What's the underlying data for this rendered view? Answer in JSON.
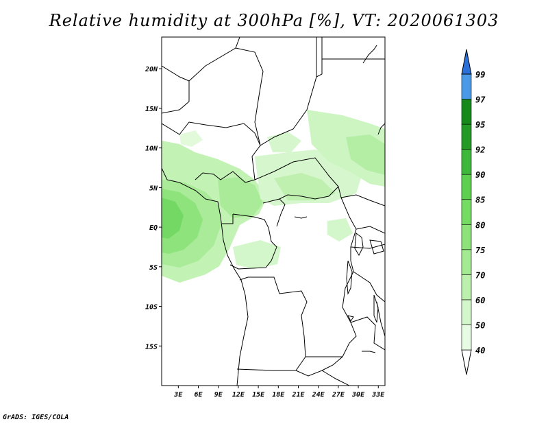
{
  "title": "Relative humidity at 300hPa [%], VT: 2020061303",
  "credit": "GrADS: IGES/COLA",
  "map": {
    "lat_range": [
      -20,
      24
    ],
    "lon_range": [
      0.5,
      34
    ],
    "lat_ticks": [
      {
        "value": 20,
        "label": "20N"
      },
      {
        "value": 15,
        "label": "15N"
      },
      {
        "value": 10,
        "label": "10N"
      },
      {
        "value": 5,
        "label": "5N"
      },
      {
        "value": 0,
        "label": "EQ"
      },
      {
        "value": -5,
        "label": "5S"
      },
      {
        "value": -10,
        "label": "10S"
      },
      {
        "value": -15,
        "label": "15S"
      }
    ],
    "lon_ticks": [
      {
        "value": 3,
        "label": "3E"
      },
      {
        "value": 6,
        "label": "6E"
      },
      {
        "value": 9,
        "label": "9E"
      },
      {
        "value": 12,
        "label": "12E"
      },
      {
        "value": 15,
        "label": "15E"
      },
      {
        "value": 18,
        "label": "18E"
      },
      {
        "value": 21,
        "label": "21E"
      },
      {
        "value": 24,
        "label": "24E"
      },
      {
        "value": 27,
        "label": "27E"
      },
      {
        "value": 30,
        "label": "30E"
      },
      {
        "value": 33,
        "label": "33E"
      }
    ]
  },
  "colorbar": {
    "levels": [
      "40",
      "50",
      "60",
      "70",
      "75",
      "80",
      "85",
      "90",
      "92",
      "95",
      "97",
      "99"
    ],
    "colors": [
      "#e8fbe3",
      "#d3f6ca",
      "#bbf0ad",
      "#a3ea92",
      "#8de37a",
      "#75dc63",
      "#5ccf4f",
      "#3db83a",
      "#249a26",
      "#158a1a",
      "#4a9ae8",
      "#2a70d8",
      "#1a50b8"
    ]
  }
}
